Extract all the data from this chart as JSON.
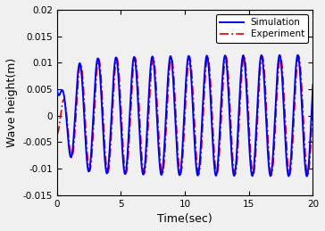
{
  "title": "",
  "xlabel": "Time(sec)",
  "ylabel": "Wave height(m)",
  "xlim": [
    0,
    20
  ],
  "ylim": [
    -0.015,
    0.02
  ],
  "yticks": [
    -0.015,
    -0.01,
    -0.005,
    0,
    0.005,
    0.01,
    0.015,
    0.02
  ],
  "xticks": [
    0,
    5,
    10,
    15,
    20
  ],
  "period": 1.42,
  "sim_color": "#0000EE",
  "exp_color": "#DD0000",
  "sim_label": "Simulation",
  "exp_label": "Experiment",
  "sim_linewidth": 1.4,
  "exp_linewidth": 1.2,
  "legend_fontsize": 7.5,
  "axis_fontsize": 9,
  "tick_fontsize": 7.5,
  "fig_facecolor": "#F0F0F0"
}
